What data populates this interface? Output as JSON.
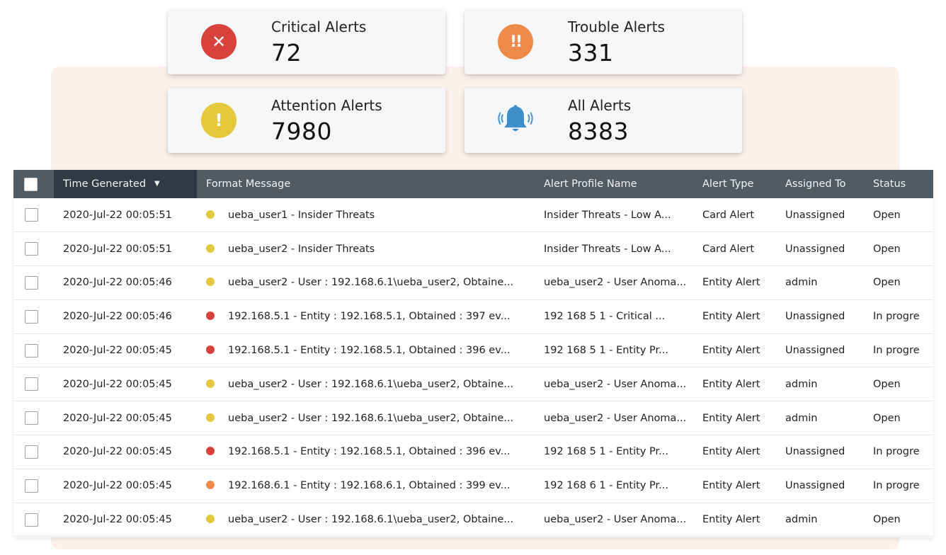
{
  "colors": {
    "critical": "#d9413c",
    "trouble": "#ee8a4a",
    "attention": "#e6c83c",
    "all": "#3e8fc9",
    "header_bg": "#515b64",
    "header_sorted_bg": "#2f3a44"
  },
  "summary": {
    "critical": {
      "label": "Critical Alerts",
      "count": "72",
      "icon": "close-icon",
      "glyph": "✕"
    },
    "trouble": {
      "label": "Trouble Alerts",
      "count": "331",
      "icon": "double-exclamation-icon",
      "glyph": "!!"
    },
    "attention": {
      "label": "Attention Alerts",
      "count": "7980",
      "icon": "exclamation-icon",
      "glyph": "!"
    },
    "all": {
      "label": "All Alerts",
      "count": "8383",
      "icon": "bell-icon"
    }
  },
  "table": {
    "columns": {
      "time": "Time Generated",
      "message": "Format Message",
      "profile": "Alert Profile Name",
      "type": "Alert Type",
      "assigned": "Assigned To",
      "status": "Status"
    },
    "sort_icon": "caret-down-icon",
    "rows": [
      {
        "time": "2020-Jul-22 00:05:51",
        "severity": "attention",
        "message": "ueba_user1 - Insider Threats",
        "profile": "Insider Threats - Low A...",
        "type": "Card Alert",
        "assigned": "Unassigned",
        "status": "Open"
      },
      {
        "time": "2020-Jul-22 00:05:51",
        "severity": "attention",
        "message": "ueba_user2 - Insider Threats",
        "profile": "Insider Threats - Low A...",
        "type": "Card Alert",
        "assigned": "Unassigned",
        "status": "Open"
      },
      {
        "time": "2020-Jul-22 00:05:46",
        "severity": "attention",
        "message": "ueba_user2 - User : 192.168.6.1\\ueba_user2, Obtaine...",
        "profile": "ueba_user2 - User Anoma...",
        "type": "Entity Alert",
        "assigned": "admin",
        "status": "Open"
      },
      {
        "time": "2020-Jul-22 00:05:46",
        "severity": "critical",
        "message": "192.168.5.1 - Entity : 192.168.5.1, Obtained : 397 ev...",
        "profile": "192 168 5 1 - Critical ...",
        "type": "Entity Alert",
        "assigned": "Unassigned",
        "status": "In progre"
      },
      {
        "time": "2020-Jul-22 00:05:45",
        "severity": "critical",
        "message": "192.168.5.1 - Entity : 192.168.5.1, Obtained : 396 ev...",
        "profile": "192 168 5 1 - Entity Pr...",
        "type": "Entity Alert",
        "assigned": "Unassigned",
        "status": "In progre"
      },
      {
        "time": "2020-Jul-22 00:05:45",
        "severity": "attention",
        "message": "ueba_user2 - User : 192.168.6.1\\ueba_user2, Obtaine...",
        "profile": "ueba_user2 - User Anoma...",
        "type": "Entity Alert",
        "assigned": "admin",
        "status": "Open"
      },
      {
        "time": "2020-Jul-22 00:05:45",
        "severity": "attention",
        "message": "ueba_user2 - User : 192.168.6.1\\ueba_user2, Obtaine...",
        "profile": "ueba_user2 - User Anoma...",
        "type": "Entity Alert",
        "assigned": "admin",
        "status": "Open"
      },
      {
        "time": "2020-Jul-22 00:05:45",
        "severity": "critical",
        "message": "192.168.5.1 - Entity : 192.168.5.1, Obtained : 396 ev...",
        "profile": "192 168 5 1 - Entity Pr...",
        "type": "Entity Alert",
        "assigned": "Unassigned",
        "status": "In progre"
      },
      {
        "time": "2020-Jul-22 00:05:45",
        "severity": "trouble",
        "message": "192.168.6.1 - Entity : 192.168.6.1, Obtained : 399 ev...",
        "profile": "192 168 6 1 - Entity Pr...",
        "type": "Entity Alert",
        "assigned": "Unassigned",
        "status": "In progre"
      },
      {
        "time": "2020-Jul-22 00:05:45",
        "severity": "attention",
        "message": "ueba_user2 - User : 192.168.6.1\\ueba_user2, Obtaine...",
        "profile": "ueba_user2 - User Anoma...",
        "type": "Entity Alert",
        "assigned": "admin",
        "status": "Open"
      }
    ]
  }
}
